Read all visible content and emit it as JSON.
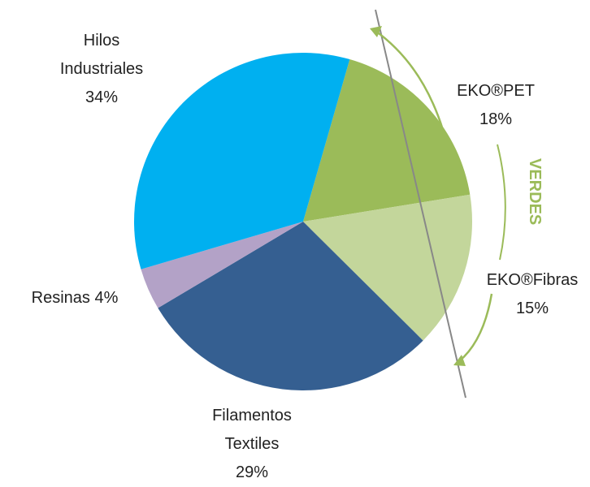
{
  "chart_data": {
    "type": "pie",
    "categories": [
      "EKO®PET",
      "EKO®Fibras",
      "Filamentos Textiles",
      "Resinas",
      "Hilos Industriales"
    ],
    "values": [
      18,
      15,
      29,
      4,
      34
    ],
    "value_labels": [
      "18%",
      "15%",
      "29%",
      "4%",
      "34%"
    ],
    "colors": [
      "#9bbb59",
      "#c3d69b",
      "#355f91",
      "#b3a2c7",
      "#00b0f0"
    ],
    "annotation": "VERDES"
  }
}
